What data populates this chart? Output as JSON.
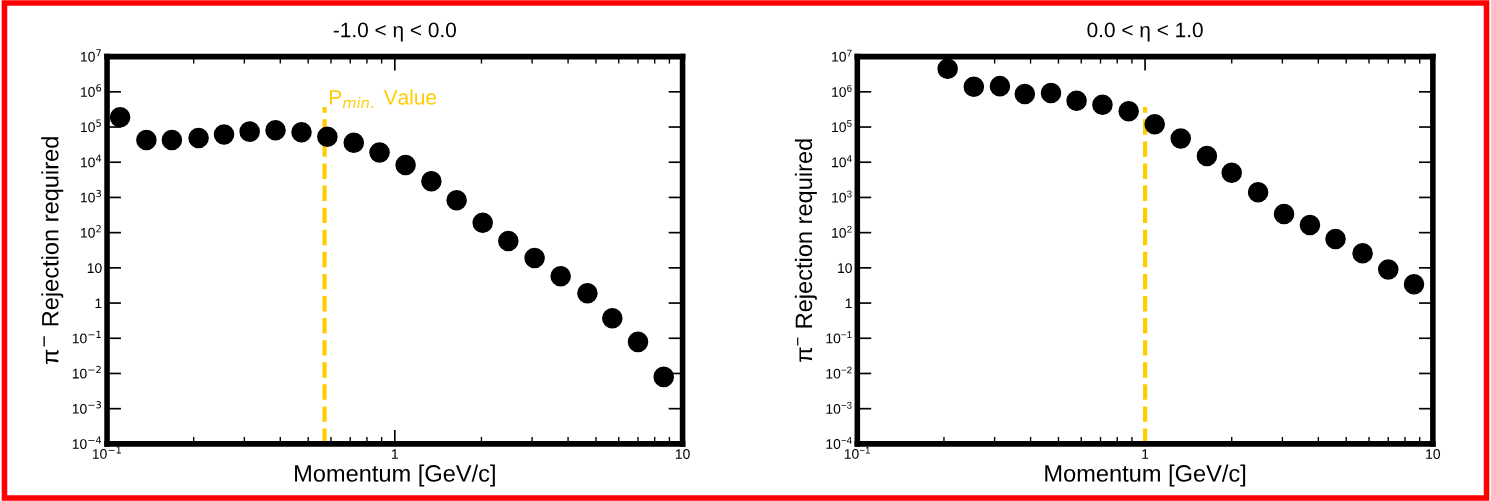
{
  "chart_data": [
    {
      "type": "scatter",
      "title": "-1.0 < η < 0.0",
      "xlabel": "Momentum [GeV/c]",
      "ylabel": "π$^{−}$ Rejection required",
      "x": [
        0.111,
        0.137,
        0.168,
        0.208,
        0.255,
        0.313,
        0.385,
        0.474,
        0.583,
        0.72,
        0.885,
        1.09,
        1.34,
        1.64,
        2.02,
        2.48,
        3.06,
        3.77,
        4.67,
        5.7,
        7.0,
        8.6
      ],
      "series": [
        {
          "color": "#000000",
          "values": [
            190000,
            43000,
            43000,
            49000,
            61000,
            74000,
            81000,
            71000,
            53000,
            36000,
            19000,
            8400,
            2900,
            830,
            190,
            58,
            19,
            5.8,
            1.9,
            0.37,
            0.079,
            0.008
          ]
        }
      ],
      "log": "xy",
      "xlim": [
        0.1,
        10
      ],
      "ylim": [
        0.0001,
        10000000
      ],
      "xticks": [
        {
          "value": 0.1,
          "label": "10$^{−1}$"
        },
        1,
        10
      ],
      "yticks": [
        {
          "value": 0.0001,
          "label": "10$^{−4}$"
        },
        {
          "value": 0.001,
          "label": "10$^{−3}$"
        },
        {
          "value": 0.01,
          "label": "10$^{−2}$"
        },
        {
          "value": 0.1,
          "label": "10$^{−1}$"
        },
        1,
        10,
        {
          "value": 100,
          "label": "10$^{2}$"
        },
        {
          "value": 1000,
          "label": "10$^{3}$"
        },
        {
          "value": 10000,
          "label": "10$^{4}$"
        },
        {
          "value": 100000,
          "label": "10$^{5}$"
        },
        {
          "value": 1000000,
          "label": "10$^{6}$"
        },
        {
          "value": 10000000,
          "label": "10$^{7}$"
        }
      ],
      "ref_lines": [
        {
          "axis": "x",
          "value": 0.57,
          "label": "P$_{min.}$ Value",
          "color": "#ffcc00",
          "line_style": "dashed"
        }
      ],
      "marker": "circle",
      "grid": false,
      "legend": false
    },
    {
      "type": "scatter",
      "title": "0.0 < η < 1.0",
      "xlabel": "Momentum [GeV/c]",
      "ylabel": "π$^{−}$ Rejection required",
      "x": [
        0.206,
        0.254,
        0.313,
        0.382,
        0.471,
        0.578,
        0.711,
        0.877,
        1.08,
        1.33,
        1.64,
        2.0,
        2.47,
        3.04,
        3.74,
        4.59,
        5.7,
        7.0,
        8.6
      ],
      "series": [
        {
          "color": "#000000",
          "values": [
            4500000,
            1400000,
            1450000,
            870000,
            930000,
            560000,
            430000,
            280000,
            120000,
            47000,
            15000,
            5000,
            1400,
            340,
            165,
            66,
            26,
            9,
            3.4
          ]
        }
      ],
      "log": "xy",
      "xlim": [
        0.1,
        10
      ],
      "ylim": [
        0.0001,
        10000000
      ],
      "xticks": [
        {
          "value": 0.1,
          "label": "10$^{−1}$"
        },
        1,
        10
      ],
      "yticks": [
        {
          "value": 0.0001,
          "label": "10$^{−4}$"
        },
        {
          "value": 0.001,
          "label": "10$^{−3}$"
        },
        {
          "value": 0.01,
          "label": "10$^{−2}$"
        },
        {
          "value": 0.1,
          "label": "10$^{−1}$"
        },
        1,
        10,
        {
          "value": 100,
          "label": "10$^{2}$"
        },
        {
          "value": 1000,
          "label": "10$^{3}$"
        },
        {
          "value": 10000,
          "label": "10$^{4}$"
        },
        {
          "value": 100000,
          "label": "10$^{5}$"
        },
        {
          "value": 1000000,
          "label": "10$^{6}$"
        },
        {
          "value": 10000000,
          "label": "10$^{7}$"
        }
      ],
      "ref_lines": [
        {
          "axis": "x",
          "value": 1,
          "color": "#ffcc00",
          "line_style": "dashed"
        }
      ],
      "marker": "circle",
      "grid": false,
      "legend": false
    }
  ]
}
